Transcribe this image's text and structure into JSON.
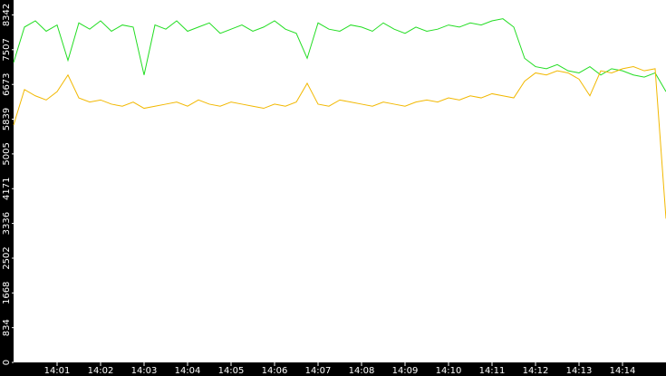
{
  "chart_data": {
    "type": "line",
    "categories": [
      null,
      null,
      null,
      null,
      "14:01",
      null,
      null,
      null,
      "14:02",
      null,
      null,
      null,
      "14:03",
      null,
      null,
      null,
      "14:04",
      null,
      null,
      null,
      "14:05",
      null,
      null,
      null,
      "14:06",
      null,
      null,
      null,
      "14:07",
      null,
      null,
      null,
      "14:08",
      null,
      null,
      null,
      "14:09",
      null,
      null,
      null,
      "14:10",
      null,
      null,
      null,
      "14:11",
      null,
      null,
      null,
      "14:12",
      null,
      null,
      null,
      "14:13",
      null,
      null,
      null,
      "14:14",
      null,
      null,
      null,
      null
    ],
    "series": [
      {
        "color": "#22dd22",
        "values": [
          7200,
          8050,
          8200,
          7950,
          8100,
          7250,
          8150,
          8000,
          8200,
          7950,
          8100,
          8050,
          6900,
          8100,
          8000,
          8200,
          7950,
          8050,
          8150,
          7900,
          8000,
          8100,
          7950,
          8050,
          8200,
          8000,
          7900,
          7300,
          8150,
          8000,
          7950,
          8100,
          8050,
          7950,
          8150,
          8000,
          7900,
          8050,
          7950,
          8000,
          8100,
          8050,
          8150,
          8100,
          8200,
          8250,
          8050,
          7300,
          7100,
          7050,
          7150,
          7000,
          6950,
          7100,
          6900,
          7050,
          7000,
          6900,
          6850,
          6950,
          6500
        ]
      },
      {
        "color": "#f2b800",
        "values": [
          5700,
          6550,
          6400,
          6300,
          6500,
          6900,
          6350,
          6250,
          6300,
          6200,
          6150,
          6250,
          6100,
          6150,
          6200,
          6250,
          6150,
          6300,
          6200,
          6150,
          6250,
          6200,
          6150,
          6100,
          6200,
          6150,
          6250,
          6700,
          6200,
          6150,
          6300,
          6250,
          6200,
          6150,
          6250,
          6200,
          6150,
          6250,
          6300,
          6250,
          6350,
          6300,
          6400,
          6350,
          6450,
          6400,
          6350,
          6750,
          6950,
          6900,
          7000,
          6950,
          6800,
          6400,
          7000,
          6950,
          7050,
          7100,
          7000,
          7050,
          3450
        ]
      }
    ],
    "ylim": [
      0,
      8700
    ],
    "yticks": [
      0,
      834,
      1668,
      2502,
      3336,
      4171,
      5005,
      5839,
      6673,
      7507,
      8342
    ]
  }
}
